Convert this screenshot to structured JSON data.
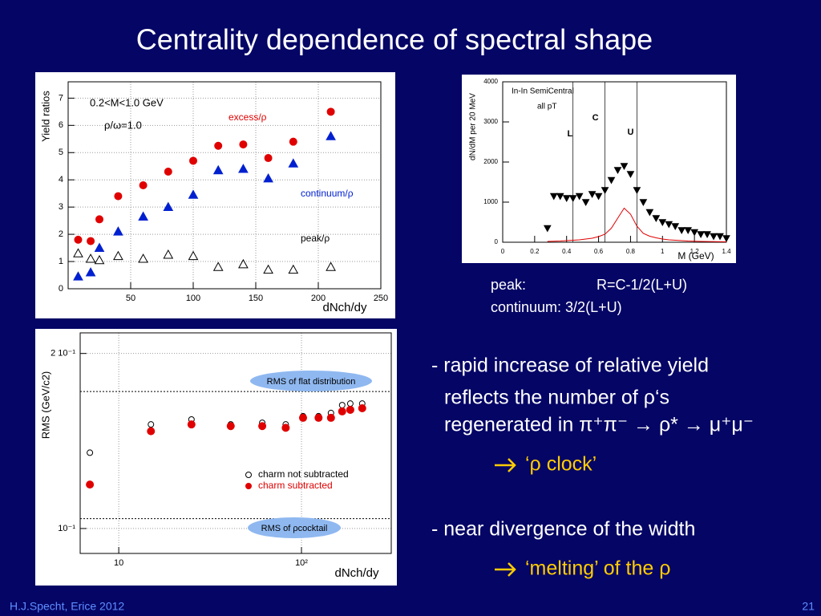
{
  "title": "Centrality dependence of spectral shape",
  "notes": [
    "peak:",
    "R=C-1/2(L+U)",
    "continuum:  3/2(L+U)"
  ],
  "bullets": [
    "- rapid increase of relative yield",
    "reflects the number of ρ‘s",
    "regenerated in π⁺π⁻ → ρ* → μ⁺μ⁻",
    "‘ρ clock’",
    "- near divergence of the width",
    "‘melting’ of the ρ"
  ],
  "footer": {
    "author": "H.J.Specht, Erice 2012",
    "page": "21"
  },
  "chart_data": [
    {
      "type": "scatter",
      "xlabel": "dNch/dy",
      "ylabel": "Yield ratios",
      "annotations": [
        "0.2<M<1.0 GeV",
        "ρ/ω=1.0"
      ],
      "x": [
        8,
        18,
        25,
        40,
        60,
        80,
        100,
        120,
        140,
        160,
        180,
        210
      ],
      "series": [
        {
          "name": "excess/ρ",
          "color": "#e00000",
          "marker": "circle",
          "values": [
            1.8,
            1.75,
            2.55,
            3.4,
            3.8,
            4.3,
            4.7,
            5.25,
            5.3,
            4.8,
            5.4,
            6.5
          ]
        },
        {
          "name": "continuum/ρ",
          "color": "#0020d0",
          "marker": "triangle",
          "values": [
            0.45,
            0.6,
            1.5,
            2.1,
            2.65,
            3.0,
            3.45,
            4.35,
            4.4,
            4.05,
            4.6,
            5.6
          ]
        },
        {
          "name": "peak/ρ",
          "color": "#000000",
          "marker": "open-triangle",
          "values": [
            1.3,
            1.1,
            1.05,
            1.2,
            1.1,
            1.25,
            1.2,
            0.8,
            0.9,
            0.7,
            0.7,
            0.8
          ]
        }
      ],
      "xlim": [
        0,
        250
      ],
      "ylim": [
        0,
        7.6
      ],
      "xticks": [
        50,
        100,
        150,
        200,
        250
      ],
      "yticks": [
        0,
        1,
        2,
        3,
        4,
        5,
        6,
        7
      ],
      "grid": true
    },
    {
      "type": "line",
      "xlabel": "M (GeV)",
      "ylabel": "dN/dM per 20 MeV",
      "annotations": [
        "In-In SemiCentral",
        "all pT"
      ],
      "regions": {
        "labels": [
          "L",
          "C",
          "U"
        ],
        "edges": [
          0.44,
          0.64,
          0.84
        ]
      },
      "x": [
        0.28,
        0.32,
        0.36,
        0.4,
        0.44,
        0.48,
        0.52,
        0.56,
        0.6,
        0.64,
        0.68,
        0.72,
        0.76,
        0.8,
        0.84,
        0.88,
        0.92,
        0.96,
        1.0,
        1.04,
        1.08,
        1.12,
        1.16,
        1.2,
        1.24,
        1.28,
        1.32,
        1.36,
        1.4
      ],
      "series": [
        {
          "color": "#000000",
          "style": "points",
          "values": [
            350,
            1150,
            1150,
            1100,
            1100,
            1150,
            1000,
            1200,
            1150,
            1300,
            1550,
            1800,
            1900,
            1700,
            1300,
            1000,
            750,
            600,
            500,
            450,
            400,
            300,
            300,
            250,
            200,
            200,
            150,
            150,
            100
          ]
        },
        {
          "color": "#e00000",
          "style": "line",
          "values": [
            20,
            25,
            30,
            40,
            50,
            60,
            80,
            100,
            140,
            200,
            350,
            600,
            850,
            700,
            400,
            220,
            150,
            110,
            80,
            60,
            50,
            40,
            30,
            25,
            20,
            18,
            15,
            12,
            10
          ]
        }
      ],
      "xlim": [
        0,
        1.4
      ],
      "ylim": [
        0,
        4000
      ],
      "xticks": [
        0,
        0.2,
        0.4,
        0.6,
        0.8,
        1,
        1.2,
        1.4
      ],
      "yticks": [
        0,
        1000,
        2000,
        3000,
        4000
      ],
      "grid": false
    },
    {
      "type": "scatter",
      "xlabel": "dNch/dy",
      "ylabel": "RMS (GeV/c2)",
      "xlog": true,
      "ylog": true,
      "references": [
        {
          "value": 0.172,
          "label": "RMS of flat distribution"
        },
        {
          "value": 0.104,
          "label": "RMS of ρcocktail"
        }
      ],
      "x": [
        6.95,
        15,
        25,
        41,
        61,
        82,
        102,
        124,
        145,
        167,
        185,
        215
      ],
      "series": [
        {
          "name": "charm not subtracted",
          "color": "#000000",
          "marker": "open-circle",
          "values": [
            0.135,
            0.151,
            0.154,
            0.151,
            0.152,
            0.151,
            0.156,
            0.156,
            0.158,
            0.163,
            0.164,
            0.164
          ]
        },
        {
          "name": "charm subtracted",
          "color": "#e00000",
          "marker": "circle",
          "values": [
            0.119,
            0.147,
            0.151,
            0.15,
            0.15,
            0.149,
            0.155,
            0.155,
            0.155,
            0.159,
            0.16,
            0.161
          ]
        }
      ],
      "xlim": [
        6.15,
        310
      ],
      "ylim": [
        0.0906,
        0.217
      ],
      "xticks": [
        10,
        {
          "value": 100,
          "label": "10²"
        }
      ],
      "yticks": [
        {
          "value": 0.1,
          "label": "10⁻¹"
        },
        {
          "value": 0.2,
          "label": "2 10⁻¹"
        }
      ],
      "grid": true
    }
  ]
}
